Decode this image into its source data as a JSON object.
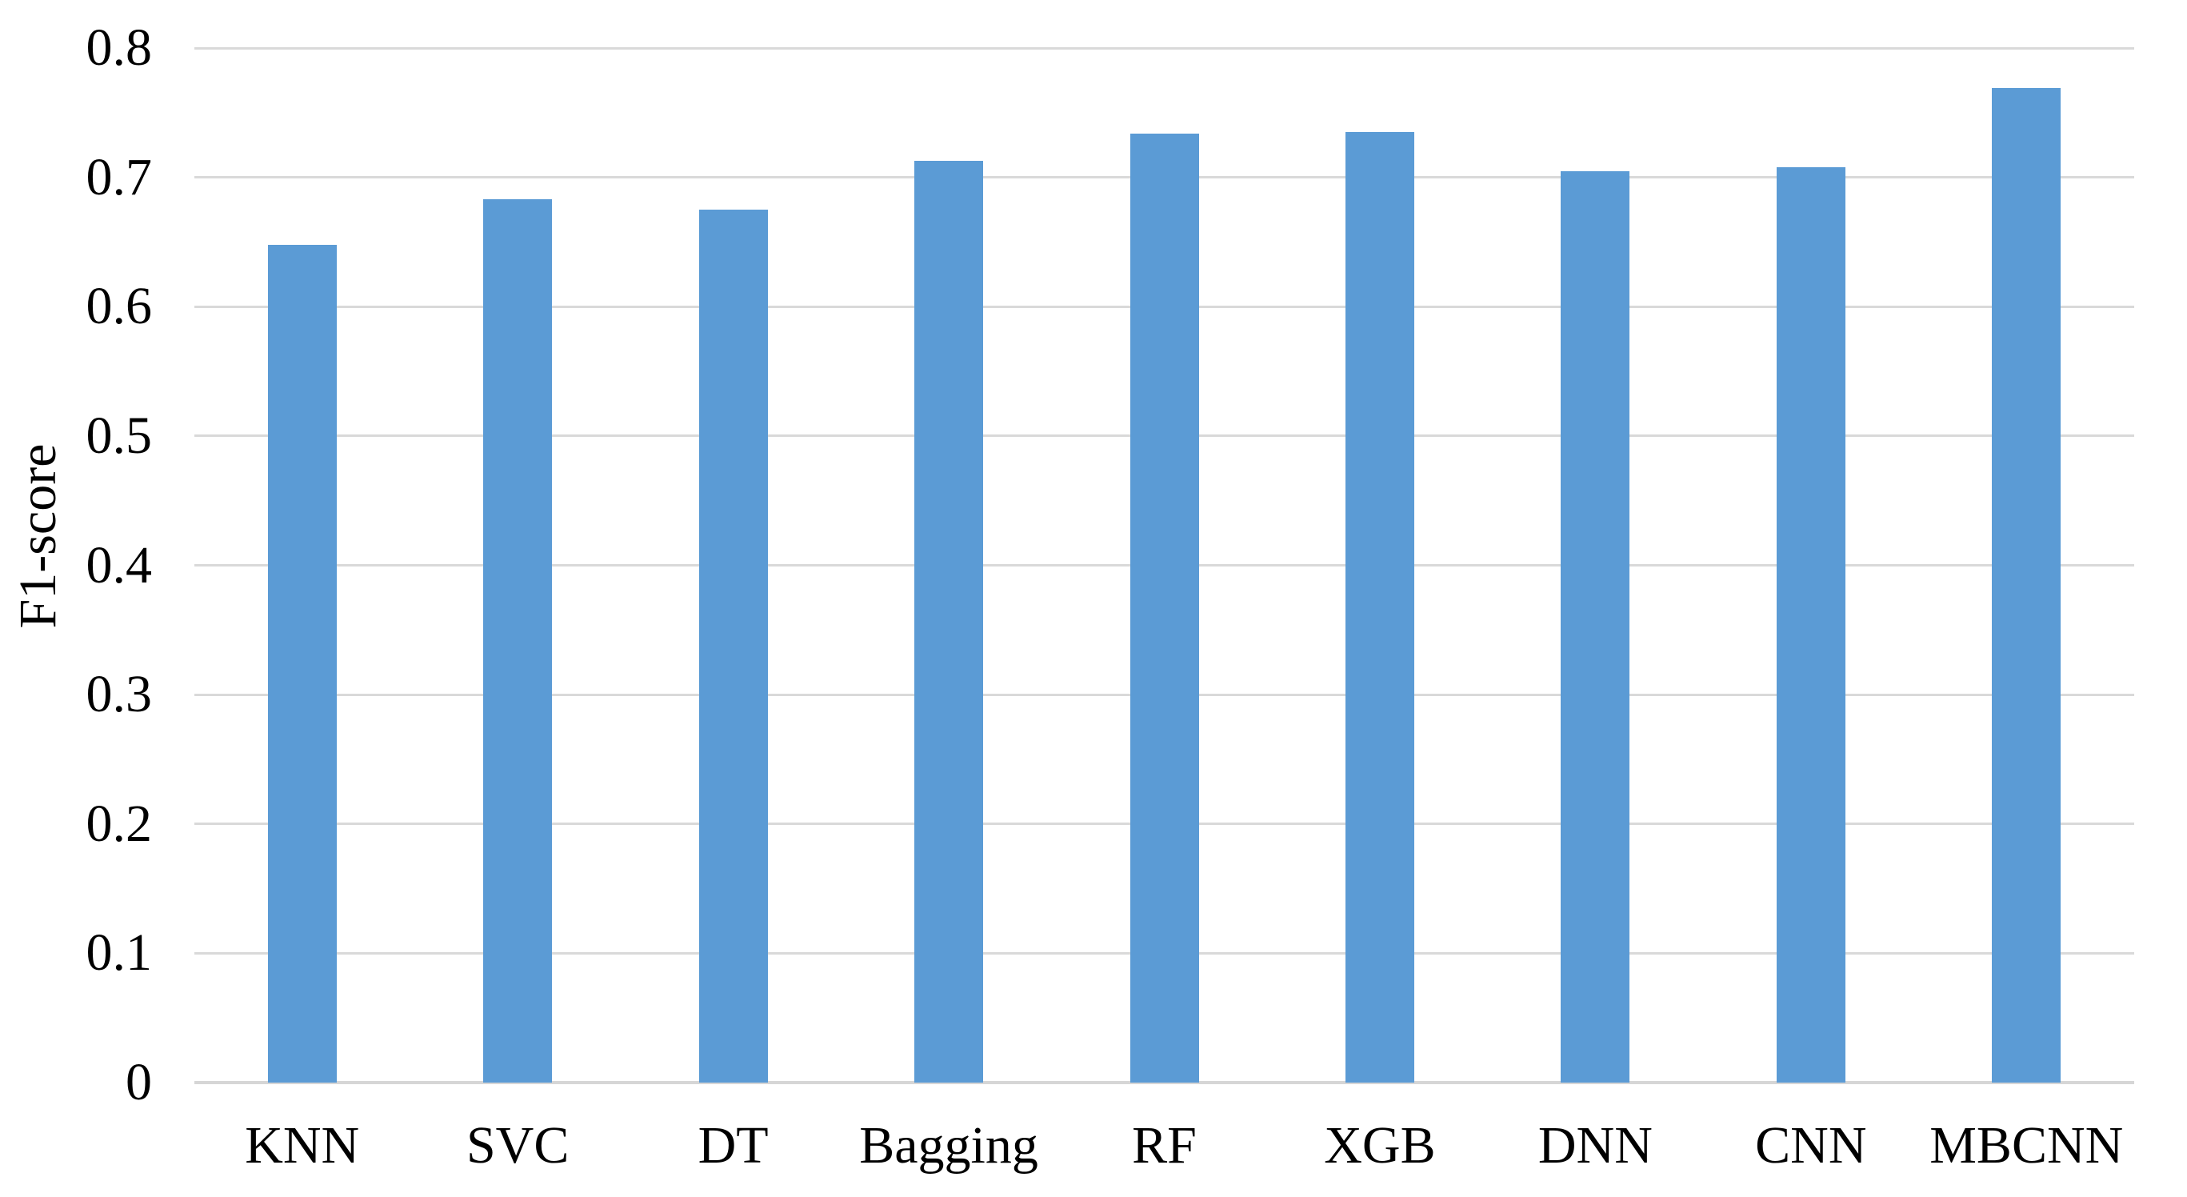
{
  "chart_data": {
    "type": "bar",
    "title": "",
    "categories": [
      "KNN",
      "SVC",
      "DT",
      "Bagging",
      "RF",
      "XGB",
      "DNN",
      "CNN",
      "MBCNN"
    ],
    "values": [
      0.648,
      0.683,
      0.675,
      0.713,
      0.734,
      0.735,
      0.705,
      0.708,
      0.769
    ],
    "series_name": "F1-score",
    "xlabel": "",
    "ylabel": "F1-score",
    "ylim": [
      0,
      0.8
    ],
    "y_ticks": [
      0,
      0.1,
      0.2,
      0.3,
      0.4,
      0.5,
      0.6,
      0.7,
      0.8
    ],
    "y_tick_labels": [
      "0",
      "0.1",
      "0.2",
      "0.3",
      "0.4",
      "0.5",
      "0.6",
      "0.7",
      "0.8"
    ],
    "grid": true,
    "legend": false,
    "colors": {
      "bar": "#5B9BD5",
      "gridline": "#D9D9D9",
      "axis_line": "#D6D6D6",
      "text": "#000000",
      "background": "#FFFFFF"
    }
  }
}
